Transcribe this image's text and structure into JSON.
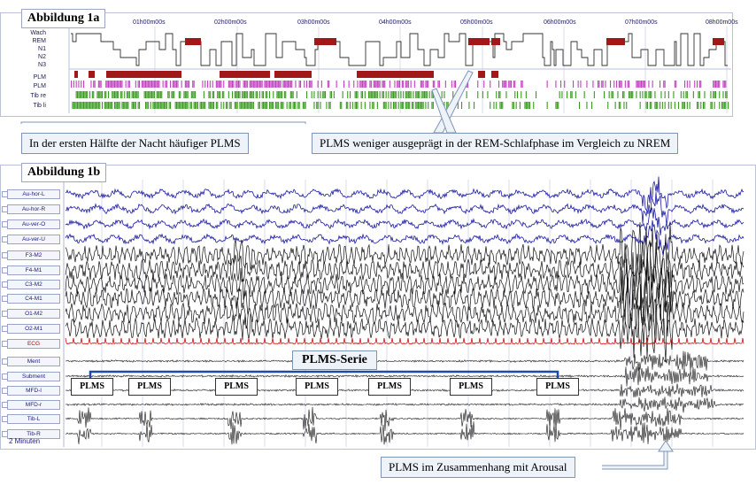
{
  "figure_a": {
    "title": "Abbildung 1a",
    "stages": [
      "Wach",
      "REM",
      "N1",
      "N2",
      "N3"
    ],
    "event_rows": [
      "PLM",
      "PLM",
      "Tib re",
      "Tib li"
    ],
    "time_ticks": [
      "01h00m00s",
      "02h00m00s",
      "03h00m00s",
      "04h00m00s",
      "05h00m00s",
      "06h00m00s",
      "07h00m00s",
      "08h00m00s"
    ]
  },
  "callouts": {
    "first_half": "In der ersten Hälfte der Nacht häufiger PLMS",
    "rem": "PLMS weniger ausgeprägt in der REM-Schlafphase im Vergleich zu NREM",
    "arousal": "PLMS im Zusammenhang mit Arousal"
  },
  "figure_b": {
    "title": "Abbildung 1b",
    "channels": [
      "Au-hor-L",
      "Au-hor-R",
      "Au-ver-O",
      "Au-ver-U",
      "F3-M2",
      "F4-M1",
      "C3-M2",
      "C4-M1",
      "O1-M2",
      "O2-M1",
      "ECG",
      "Ment",
      "Subment",
      "MFD-l",
      "MFD-r",
      "Tib-L",
      "Tib-R"
    ],
    "timebase": "2 Minuten",
    "series_label": "PLMS-Serie",
    "plms_labels": [
      "PLMS",
      "PLMS",
      "PLMS",
      "PLMS",
      "PLMS",
      "PLMS",
      "PLMS"
    ]
  },
  "colors": {
    "eog": "#1a1aa0",
    "eeg": "#111111",
    "ecg": "#d01010",
    "rem_bar": "#a01818",
    "plm_bar1": "#a01818",
    "plm_bar2": "#c040c0",
    "tib_bar": "#3a9a20",
    "callout_border": "#7f94b5"
  }
}
